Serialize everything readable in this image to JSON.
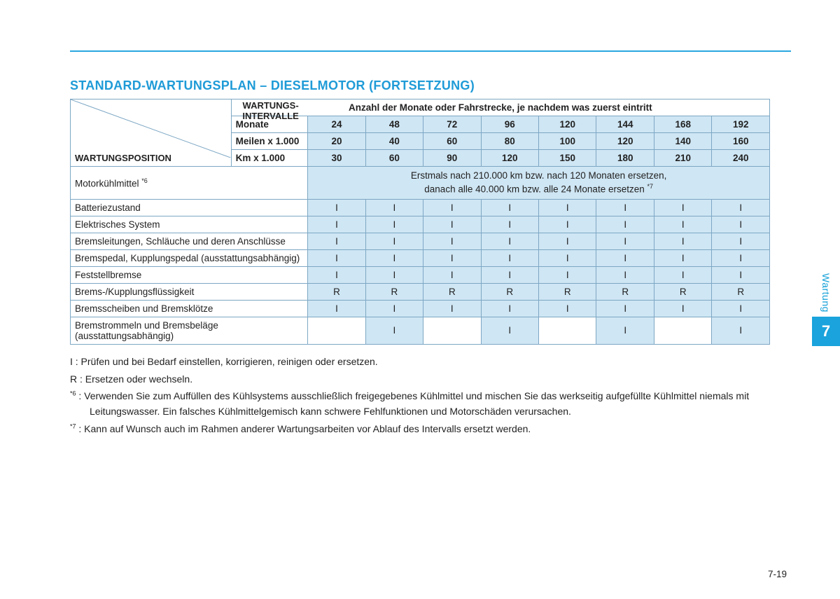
{
  "accent_color": "#1f9bd7",
  "title": "STANDARD-WARTUNGSPLAN – DIESELMOTOR (FORTSETZUNG)",
  "diag": {
    "top1": "WARTUNGS-",
    "top2": "INTERVALLE",
    "bottom": "WARTUNGSPOSITION"
  },
  "header_span": "Anzahl der Monate oder Fahrstrecke, je nachdem was zuerst eintritt",
  "unit_rows": [
    {
      "label": "Monate",
      "vals": [
        "24",
        "48",
        "72",
        "96",
        "120",
        "144",
        "168",
        "192"
      ]
    },
    {
      "label": "Meilen x 1.000",
      "vals": [
        "20",
        "40",
        "60",
        "80",
        "100",
        "120",
        "140",
        "160"
      ]
    },
    {
      "label": "Km x 1.000",
      "vals": [
        "30",
        "60",
        "90",
        "120",
        "150",
        "180",
        "210",
        "240"
      ]
    }
  ],
  "coolant": {
    "label": "Motorkühlmittel ",
    "sup": "*6",
    "note1": "Erstmals nach 210.000 km bzw. nach 120 Monaten ersetzen,",
    "note2": "danach alle 40.000 km bzw. alle 24 Monate ersetzen ",
    "note_sup": "*7"
  },
  "rows": [
    {
      "label": "Batteriezustand",
      "cells": [
        "I",
        "I",
        "I",
        "I",
        "I",
        "I",
        "I",
        "I"
      ]
    },
    {
      "label": "Elektrisches System",
      "cells": [
        "I",
        "I",
        "I",
        "I",
        "I",
        "I",
        "I",
        "I"
      ]
    },
    {
      "label": "Bremsleitungen, Schläuche und deren Anschlüsse",
      "cells": [
        "I",
        "I",
        "I",
        "I",
        "I",
        "I",
        "I",
        "I"
      ]
    },
    {
      "label": "Bremspedal, Kupplungspedal (ausstattungsabhängig)",
      "cells": [
        "I",
        "I",
        "I",
        "I",
        "I",
        "I",
        "I",
        "I"
      ]
    },
    {
      "label": "Feststellbremse",
      "cells": [
        "I",
        "I",
        "I",
        "I",
        "I",
        "I",
        "I",
        "I"
      ]
    },
    {
      "label": "Brems-/Kupplungsflüssigkeit",
      "cells": [
        "R",
        "R",
        "R",
        "R",
        "R",
        "R",
        "R",
        "R"
      ]
    },
    {
      "label": "Bremsscheiben und Bremsklötze",
      "cells": [
        "I",
        "I",
        "I",
        "I",
        "I",
        "I",
        "I",
        "I"
      ]
    },
    {
      "label": "Bremstrommeln und Bremsbeläge (ausstattungsabhängig)",
      "cells": [
        "",
        "I",
        "",
        "I",
        "",
        "I",
        "",
        "I"
      ]
    }
  ],
  "legend": {
    "i": "I : Prüfen und bei Bedarf einstellen, korrigieren, reinigen oder ersetzen.",
    "r": "R : Ersetzen oder wechseln.",
    "n6_sup": "*6",
    "n6": " : Verwenden Sie zum Auffüllen des Kühlsystems ausschließlich freigegebenes Kühlmittel und mischen Sie das werkseitig aufgefüllte Kühlmittel niemals mit Leitungswasser. Ein falsches Kühlmittelgemisch kann schwere Fehlfunktionen und Motorschäden verursachen.",
    "n7_sup": "*7",
    "n7": " : Kann auf Wunsch auch im Rahmen anderer Wartungsarbeiten vor Ablauf des Intervalls ersetzt werden."
  },
  "side": {
    "label": "Wartung",
    "num": "7"
  },
  "page_num": "7-19"
}
